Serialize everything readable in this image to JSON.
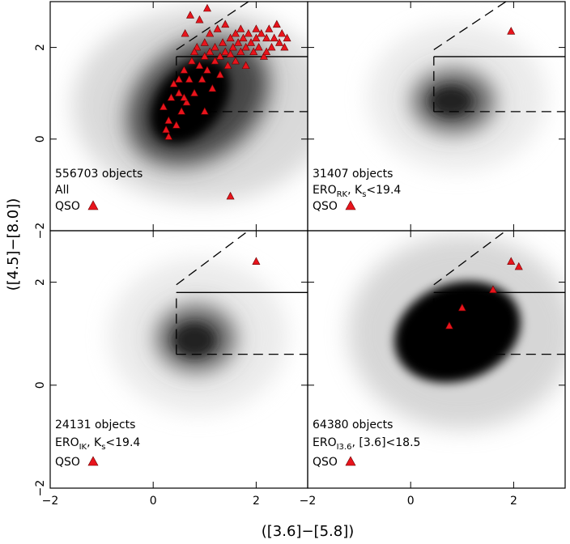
{
  "chart_data": {
    "type": "scatter",
    "x_label": "([3.6]−[5.8])",
    "y_label": "([4.5]−[8.0])",
    "xlim": [
      -2,
      3
    ],
    "ylim": [
      -2,
      3
    ],
    "xticks": [
      {
        "value": -2,
        "label": "−2"
      },
      0,
      2
    ],
    "yticks": [
      {
        "value": -2,
        "label": "−2"
      },
      0,
      2
    ],
    "qso_color": "#e8141c",
    "cuts": [
      {
        "style": "solid",
        "x": [
          0.45,
          3
        ],
        "y": [
          1.8,
          1.8
        ]
      },
      {
        "style": "dashed",
        "x": [
          0.45,
          0.45
        ],
        "y": [
          0.6,
          1.8
        ]
      },
      {
        "style": "dashed",
        "x": [
          0.45,
          3
        ],
        "y": [
          0.6,
          0.6
        ]
      },
      {
        "style": "dashed",
        "x": [
          0.45,
          1.85
        ],
        "y": [
          1.95,
          3
        ]
      }
    ],
    "panels": [
      {
        "count_label": "556703 objects",
        "selection_label": [
          "All"
        ],
        "legend_label": "QSO",
        "qso": {
          "x": [
            0.2,
            0.3,
            0.35,
            0.4,
            0.45,
            0.5,
            0.55,
            0.6,
            0.62,
            0.65,
            0.7,
            0.72,
            0.75,
            0.8,
            0.85,
            0.9,
            0.95,
            1.0,
            1.0,
            1.05,
            1.1,
            1.1,
            1.15,
            1.2,
            1.2,
            1.25,
            1.3,
            1.3,
            1.35,
            1.4,
            1.4,
            1.45,
            1.5,
            1.5,
            1.55,
            1.6,
            1.6,
            1.65,
            1.7,
            1.7,
            1.75,
            1.8,
            1.8,
            1.85,
            1.9,
            1.95,
            2.0,
            2.0,
            2.05,
            2.1,
            2.15,
            2.2,
            2.25,
            2.3,
            2.35,
            2.4,
            2.45,
            2.5,
            2.55,
            2.6,
            0.3,
            0.9,
            1.05,
            1.5,
            0.25,
            0.5,
            0.6,
            2.2,
            1.0,
            0.8
          ],
          "y": [
            0.7,
            0.4,
            0.9,
            1.2,
            0.3,
            1.0,
            0.6,
            1.5,
            2.3,
            0.8,
            1.3,
            2.7,
            1.7,
            1.0,
            2.0,
            1.6,
            1.3,
            2.1,
            1.8,
            1.5,
            2.3,
            1.9,
            1.1,
            2.0,
            1.7,
            2.4,
            1.8,
            1.4,
            2.1,
            1.9,
            2.5,
            1.6,
            2.2,
            1.85,
            2.0,
            2.3,
            1.7,
            2.1,
            1.9,
            2.4,
            2.2,
            2.0,
            1.6,
            2.3,
            2.1,
            1.9,
            2.4,
            2.2,
            2.0,
            2.3,
            1.8,
            2.2,
            2.4,
            2.0,
            2.2,
            2.5,
            2.1,
            2.3,
            2.0,
            2.2,
            0.05,
            2.6,
            2.85,
            -1.25,
            0.2,
            1.3,
            0.9,
            1.9,
            0.6,
            1.9
          ]
        }
      },
      {
        "count_label": "31407 objects",
        "selection_label": [
          "ERO",
          "RK",
          ",  K",
          "s",
          "<19.4"
        ],
        "legend_label": "QSO",
        "qso": {
          "x": [
            1.95
          ],
          "y": [
            2.35
          ]
        }
      },
      {
        "count_label": "24131 objects",
        "selection_label": [
          "ERO",
          "IK",
          ",  K",
          "s",
          "<19.4"
        ],
        "legend_label": "QSO",
        "qso": {
          "x": [
            2.0
          ],
          "y": [
            2.4
          ]
        }
      },
      {
        "count_label": "64380 objects",
        "selection_label": [
          "ERO",
          "I3.6",
          ",  [3.6]<18.5"
        ],
        "legend_label": "QSO",
        "qso": {
          "x": [
            0.75,
            1.0,
            1.6,
            1.95,
            2.1
          ],
          "y": [
            1.15,
            1.5,
            1.85,
            2.4,
            2.3
          ]
        }
      }
    ]
  }
}
